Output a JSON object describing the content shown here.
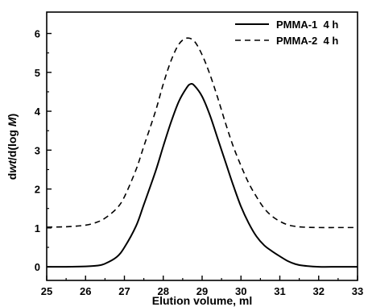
{
  "chart_data": {
    "type": "line",
    "xlabel": "Elution volume, ml",
    "ylabel_parts": [
      "d",
      "wt",
      "/d(log ",
      "M",
      ")"
    ],
    "xlim": [
      25,
      33
    ],
    "ylim": [
      -0.35,
      6.55
    ],
    "x_ticks": [
      "25",
      "26",
      "27",
      "28",
      "29",
      "30",
      "31",
      "32",
      "33"
    ],
    "y_ticks": [
      "0",
      "1",
      "2",
      "3",
      "4",
      "5",
      "6"
    ],
    "grid": false,
    "legend_position": "top-right",
    "series": [
      {
        "name": "PMMA-1  4 h",
        "style": "solid",
        "color": "#000000",
        "x": [
          25.0,
          25.5,
          26.0,
          26.3,
          26.5,
          26.8,
          27.0,
          27.3,
          27.5,
          27.8,
          28.0,
          28.2,
          28.4,
          28.6,
          28.7,
          28.8,
          29.0,
          29.2,
          29.4,
          29.6,
          29.8,
          30.0,
          30.2,
          30.4,
          30.6,
          30.8,
          31.0,
          31.2,
          31.4,
          31.6,
          32.0,
          32.5,
          33.0
        ],
        "y": [
          0.0,
          0.0,
          0.01,
          0.03,
          0.08,
          0.25,
          0.5,
          1.05,
          1.6,
          2.45,
          3.1,
          3.72,
          4.25,
          4.6,
          4.7,
          4.66,
          4.38,
          3.9,
          3.3,
          2.7,
          2.1,
          1.55,
          1.12,
          0.78,
          0.55,
          0.4,
          0.27,
          0.15,
          0.07,
          0.03,
          0.0,
          0.0,
          0.0
        ]
      },
      {
        "name": "PMMA-2  4 h",
        "style": "dashed",
        "color": "#000000",
        "x": [
          25.0,
          25.5,
          26.0,
          26.3,
          26.5,
          26.8,
          27.0,
          27.3,
          27.5,
          27.8,
          28.0,
          28.2,
          28.4,
          28.6,
          28.8,
          29.0,
          29.2,
          29.4,
          29.6,
          29.8,
          30.0,
          30.2,
          30.4,
          30.6,
          30.8,
          31.0,
          31.2,
          31.4,
          31.6,
          32.0,
          32.5,
          33.0
        ],
        "y": [
          1.02,
          1.03,
          1.07,
          1.15,
          1.25,
          1.5,
          1.8,
          2.5,
          3.1,
          4.0,
          4.7,
          5.3,
          5.72,
          5.88,
          5.8,
          5.45,
          4.95,
          4.35,
          3.7,
          3.1,
          2.6,
          2.15,
          1.8,
          1.5,
          1.3,
          1.17,
          1.08,
          1.04,
          1.02,
          1.01,
          1.01,
          1.01
        ]
      }
    ]
  }
}
